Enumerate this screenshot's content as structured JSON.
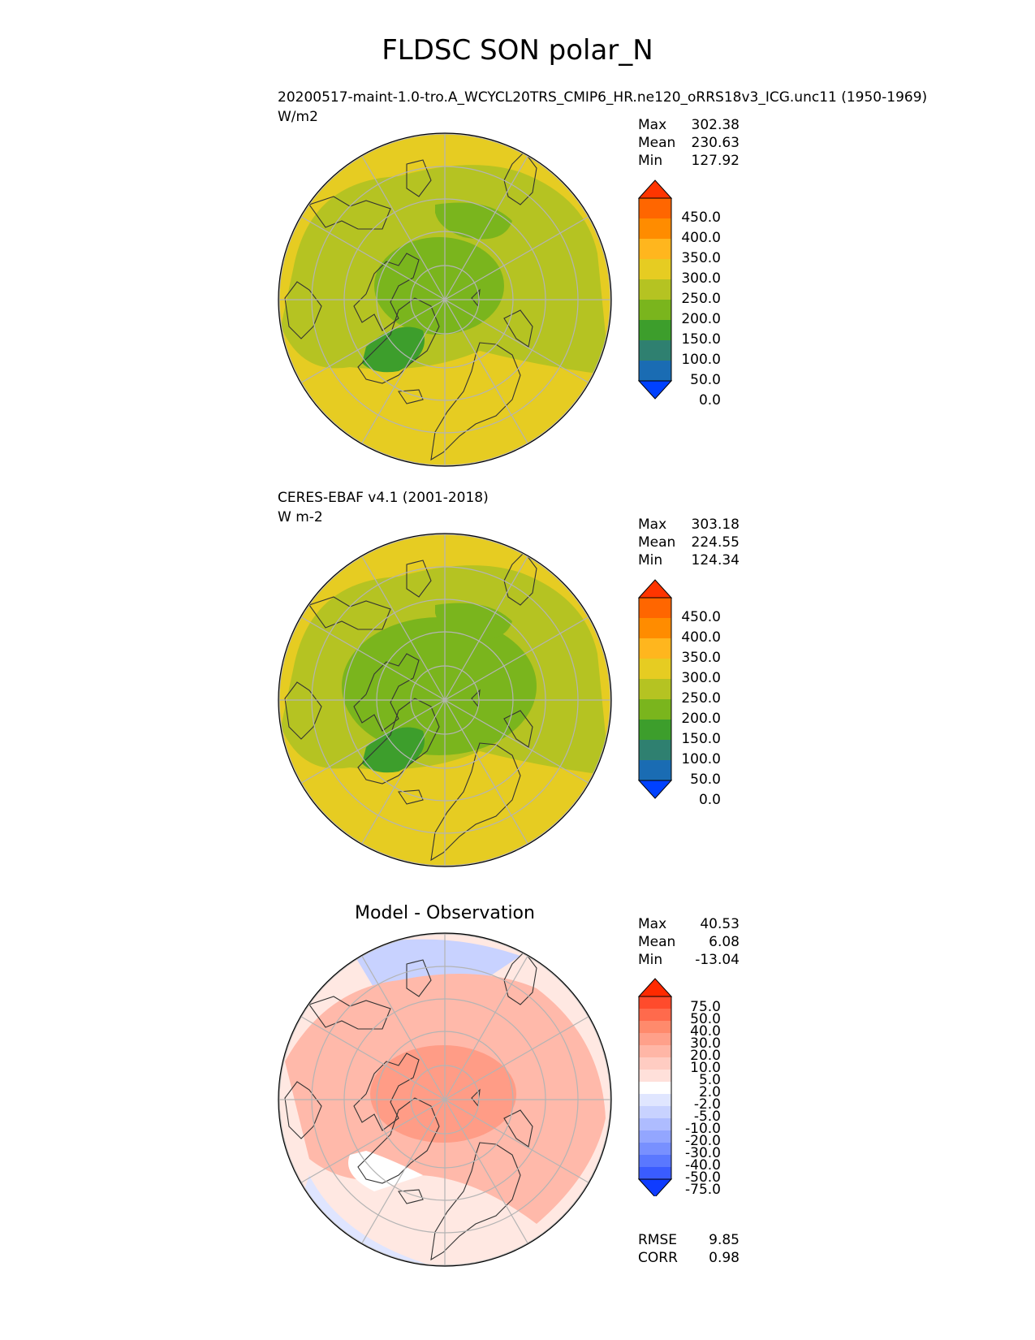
{
  "figure": {
    "title": "FLDSC SON polar_N"
  },
  "panels": [
    {
      "id": "test",
      "title": "20200517-maint-1.0-tro.A_WCYCL20TRS_CMIP6_HR.ne120_oRRS18v3_ICG.unc11 (1950-1969)",
      "units": "W/m2",
      "stats": [
        {
          "label": "Max",
          "value": "302.38"
        },
        {
          "label": "Mean",
          "value": "230.63"
        },
        {
          "label": "Min",
          "value": "127.92"
        }
      ]
    },
    {
      "id": "reference",
      "title": "CERES-EBAF v4.1 (2001-2018)",
      "units": "W m-2",
      "stats": [
        {
          "label": "Max",
          "value": "303.18"
        },
        {
          "label": "Mean",
          "value": "224.55"
        },
        {
          "label": "Min",
          "value": "124.34"
        }
      ]
    },
    {
      "id": "diff",
      "title": "Model - Observation",
      "stats": [
        {
          "label": "Max",
          "value": "40.53"
        },
        {
          "label": "Mean",
          "value": "6.08"
        },
        {
          "label": "Min",
          "value": "-13.04"
        }
      ],
      "metrics": [
        {
          "label": "RMSE",
          "value": "9.85"
        },
        {
          "label": "CORR",
          "value": "0.98"
        }
      ]
    }
  ],
  "colorbars": {
    "main": {
      "ticks": [
        "450.0",
        "400.0",
        "350.0",
        "300.0",
        "250.0",
        "200.0",
        "150.0",
        "100.0",
        "50.0",
        "0.0"
      ],
      "colors_top_to_bottom": [
        "#ff3500",
        "#ff6600",
        "#ff8c00",
        "#ffb61e",
        "#e6cc22",
        "#b5c322",
        "#7ab51d",
        "#3d9e2c",
        "#2f8070",
        "#1a6cb3",
        "#0041ff"
      ]
    },
    "diff": {
      "ticks": [
        "75.0",
        "50.0",
        "40.0",
        "30.0",
        "20.0",
        "10.0",
        "5.0",
        "2.0",
        "-2.0",
        "-5.0",
        "-10.0",
        "-20.0",
        "-30.0",
        "-40.0",
        "-50.0",
        "-75.0"
      ],
      "colors_top_to_bottom": [
        "#ff2a00",
        "#ff4b2c",
        "#ff6a4c",
        "#ff8a6c",
        "#ffa08a",
        "#ffb6a6",
        "#ffccc2",
        "#ffe0da",
        "#ffffff",
        "#e0e6ff",
        "#c8d2ff",
        "#aebcff",
        "#93a6ff",
        "#7890ff",
        "#5a78ff",
        "#3a5cff",
        "#0f3cff"
      ]
    }
  },
  "chart_data": [
    {
      "type": "heatmap",
      "projection": "north polar stereographic",
      "title": "20200517-maint-1.0-tro.A_WCYCL20TRS_CMIP6_HR.ne120_oRRS18v3_ICG.unc11 (1950-1969)",
      "units": "W/m2",
      "color_levels": [
        0,
        50,
        100,
        150,
        200,
        250,
        300,
        350,
        400,
        450
      ],
      "stats": {
        "max": 302.38,
        "mean": 230.63,
        "min": 127.92
      }
    },
    {
      "type": "heatmap",
      "projection": "north polar stereographic",
      "title": "CERES-EBAF v4.1 (2001-2018)",
      "units": "W m-2",
      "color_levels": [
        0,
        50,
        100,
        150,
        200,
        250,
        300,
        350,
        400,
        450
      ],
      "stats": {
        "max": 303.18,
        "mean": 224.55,
        "min": 124.34
      }
    },
    {
      "type": "heatmap",
      "projection": "north polar stereographic",
      "title": "Model - Observation",
      "color_levels": [
        -75,
        -50,
        -40,
        -30,
        -20,
        -10,
        -5,
        -2,
        2,
        5,
        10,
        20,
        30,
        40,
        50,
        75
      ],
      "stats": {
        "max": 40.53,
        "mean": 6.08,
        "min": -13.04
      },
      "metrics": {
        "rmse": 9.85,
        "corr": 0.98
      }
    }
  ]
}
